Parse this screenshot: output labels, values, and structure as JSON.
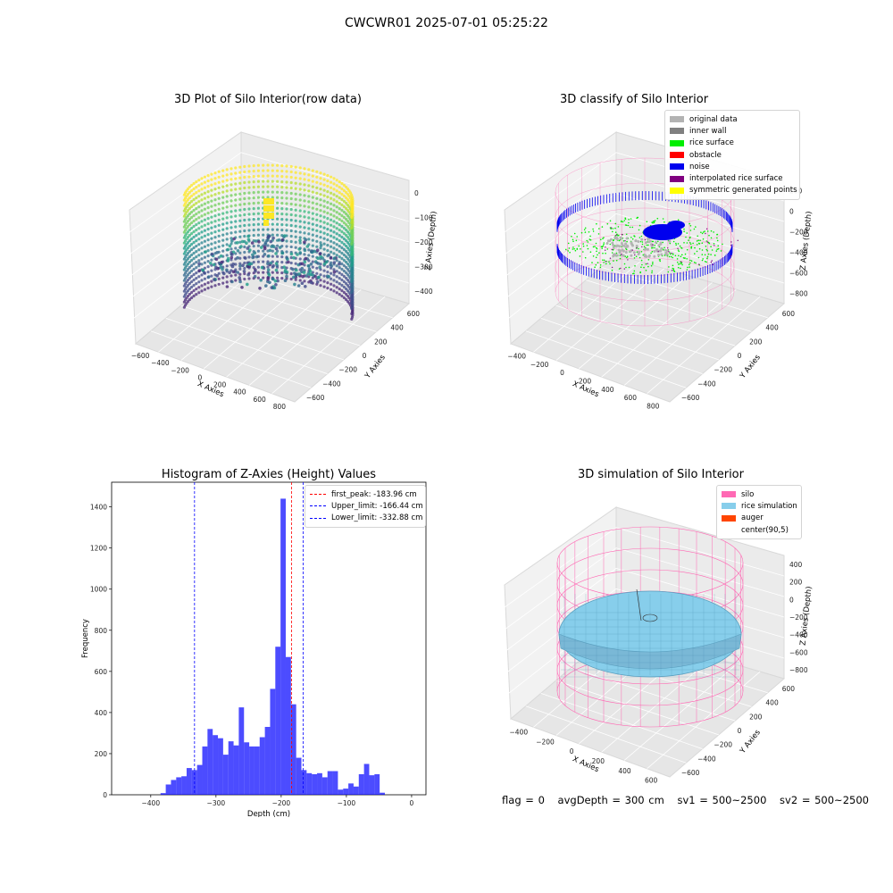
{
  "figure": {
    "suptitle": "CWCWR01 2025-07-01 05:25:22",
    "footer": {
      "flag": "flag = 0",
      "avgDepth": "avgDepth = 300 cm",
      "sv1": "sv1 = 500~2500",
      "sv2": "sv2 = 500~2500"
    }
  },
  "panels": {
    "raw": {
      "title": "3D Plot of Silo Interior(row data)",
      "xlabel": "X Axies",
      "ylabel": "Y Axies",
      "zlabel": "Z Axies (Depth)",
      "xticks": [
        "−600",
        "−400",
        "−200",
        "0",
        "200",
        "400",
        "600",
        "800"
      ],
      "yticks": [
        "−600",
        "−400",
        "−200",
        "0",
        "200",
        "400",
        "600"
      ],
      "zticks": [
        "0",
        "−100",
        "−200",
        "−300",
        "−400"
      ]
    },
    "classify": {
      "title": "3D classify of Silo Interior",
      "xlabel": "X Axies",
      "ylabel": "Y Axies",
      "zlabel": "Z Axies (Depth)",
      "xticks": [
        "−400",
        "−200",
        "0",
        "200",
        "400",
        "600",
        "800"
      ],
      "yticks": [
        "−600",
        "−400",
        "−200",
        "0",
        "200",
        "400",
        "600"
      ],
      "zticks": [
        "200",
        "0",
        "−200",
        "−400",
        "−600",
        "−800"
      ],
      "legend": [
        {
          "label": "original data",
          "color": "#b3b3b3"
        },
        {
          "label": "inner wall",
          "color": "#808080"
        },
        {
          "label": "rice surface",
          "color": "#00ee00"
        },
        {
          "label": "obstacle",
          "color": "#ff0000"
        },
        {
          "label": "noise",
          "color": "#0000ee"
        },
        {
          "label": "interpolated rice surface",
          "color": "#800080"
        },
        {
          "label": "symmetric generated points",
          "color": "#ffff00"
        }
      ]
    },
    "simulation": {
      "title": "3D simulation of Silo Interior",
      "xlabel": "X Axies",
      "ylabel": "Y Axies",
      "zlabel": "Z Axies (Depth)",
      "xticks": [
        "−400",
        "−200",
        "0",
        "200",
        "400",
        "600"
      ],
      "yticks": [
        "−600",
        "−400",
        "−200",
        "0",
        "200",
        "400",
        "600"
      ],
      "zticks": [
        "400",
        "200",
        "0",
        "−200",
        "−400",
        "−600",
        "−800"
      ],
      "legend": [
        {
          "label": "silo",
          "color": "#ff69b4"
        },
        {
          "label": "rice simulation",
          "color": "#87ceeb"
        },
        {
          "label": "auger",
          "color": "#ff4500"
        },
        {
          "label": "center(90,5)",
          "color": "#ffffff"
        }
      ]
    }
  },
  "chart_data": {
    "type": "bar",
    "title": "Histogram of Z-Axies (Height) Values",
    "xlabel": "Depth (cm)",
    "ylabel": "Frequency",
    "xlim": [
      -460,
      22
    ],
    "ylim": [
      0,
      1520
    ],
    "xticks": [
      -400,
      -300,
      -200,
      -100,
      0
    ],
    "yticks": [
      0,
      200,
      400,
      600,
      800,
      1000,
      1200,
      1400
    ],
    "bar_color": "#0000ff",
    "bins": [
      {
        "x0": -385,
        "x1": -377,
        "v": 8
      },
      {
        "x0": -377,
        "x1": -369,
        "v": 50
      },
      {
        "x0": -369,
        "x1": -361,
        "v": 72
      },
      {
        "x0": -361,
        "x1": -353,
        "v": 85
      },
      {
        "x0": -353,
        "x1": -345,
        "v": 90
      },
      {
        "x0": -345,
        "x1": -337,
        "v": 130
      },
      {
        "x0": -337,
        "x1": -329,
        "v": 120
      },
      {
        "x0": -329,
        "x1": -321,
        "v": 145
      },
      {
        "x0": -321,
        "x1": -313,
        "v": 235
      },
      {
        "x0": -313,
        "x1": -305,
        "v": 320
      },
      {
        "x0": -305,
        "x1": -297,
        "v": 290
      },
      {
        "x0": -297,
        "x1": -289,
        "v": 275
      },
      {
        "x0": -289,
        "x1": -281,
        "v": 195
      },
      {
        "x0": -281,
        "x1": -273,
        "v": 260
      },
      {
        "x0": -273,
        "x1": -265,
        "v": 240
      },
      {
        "x0": -265,
        "x1": -257,
        "v": 425
      },
      {
        "x0": -257,
        "x1": -249,
        "v": 255
      },
      {
        "x0": -249,
        "x1": -241,
        "v": 235
      },
      {
        "x0": -241,
        "x1": -233,
        "v": 235
      },
      {
        "x0": -233,
        "x1": -225,
        "v": 280
      },
      {
        "x0": -225,
        "x1": -217,
        "v": 330
      },
      {
        "x0": -217,
        "x1": -209,
        "v": 515
      },
      {
        "x0": -209,
        "x1": -201,
        "v": 720
      },
      {
        "x0": -201,
        "x1": -193,
        "v": 1440
      },
      {
        "x0": -193,
        "x1": -185,
        "v": 670
      },
      {
        "x0": -185,
        "x1": -177,
        "v": 440
      },
      {
        "x0": -177,
        "x1": -169,
        "v": 180
      },
      {
        "x0": -169,
        "x1": -161,
        "v": 120
      },
      {
        "x0": -161,
        "x1": -153,
        "v": 105
      },
      {
        "x0": -153,
        "x1": -145,
        "v": 100
      },
      {
        "x0": -145,
        "x1": -137,
        "v": 105
      },
      {
        "x0": -137,
        "x1": -129,
        "v": 85
      },
      {
        "x0": -129,
        "x1": -121,
        "v": 115
      },
      {
        "x0": -121,
        "x1": -113,
        "v": 115
      },
      {
        "x0": -113,
        "x1": -105,
        "v": 25
      },
      {
        "x0": -105,
        "x1": -97,
        "v": 30
      },
      {
        "x0": -97,
        "x1": -89,
        "v": 55
      },
      {
        "x0": -89,
        "x1": -81,
        "v": 40
      },
      {
        "x0": -81,
        "x1": -73,
        "v": 100
      },
      {
        "x0": -73,
        "x1": -65,
        "v": 150
      },
      {
        "x0": -65,
        "x1": -57,
        "v": 95
      },
      {
        "x0": -57,
        "x1": -49,
        "v": 100
      },
      {
        "x0": -49,
        "x1": -41,
        "v": 10
      }
    ],
    "vlines": [
      {
        "label": "first_peak: -183.96 cm",
        "x": -183.96,
        "color": "#ff0000"
      },
      {
        "label": "Upper_limit: -166.44 cm",
        "x": -166.44,
        "color": "#0000ff"
      },
      {
        "label": "Lower_limit: -332.88 cm",
        "x": -332.88,
        "color": "#0000ff"
      }
    ]
  }
}
